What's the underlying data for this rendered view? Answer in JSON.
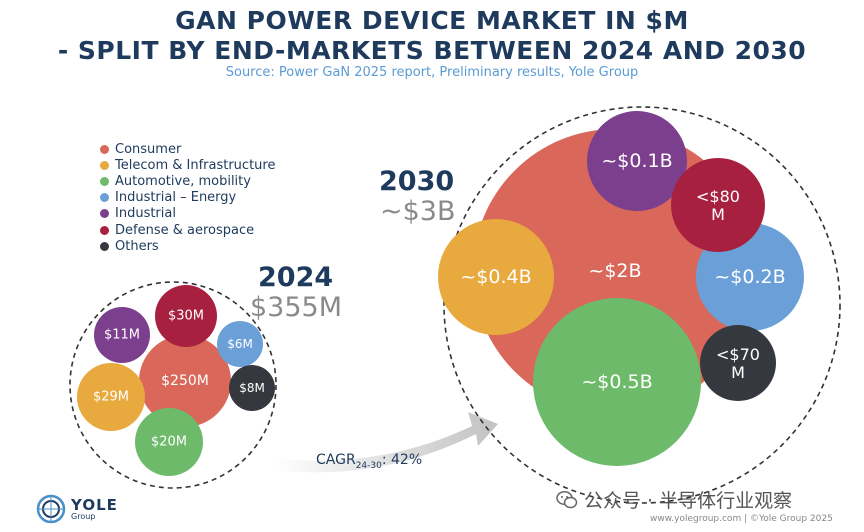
{
  "title_line1": "GAN POWER DEVICE MARKET IN $M",
  "title_line2": "- SPLIT BY END-MARKETS BETWEEN 2024 AND 2030",
  "source": "Source: Power GaN 2025 report, Preliminary results, Yole Group",
  "legend": [
    {
      "label": "Consumer",
      "color": "#d9685a"
    },
    {
      "label": "Telecom & Infrastructure",
      "color": "#e8a93e"
    },
    {
      "label": "Automotive, mobility",
      "color": "#6dbb6a"
    },
    {
      "label": "Industrial – Energy",
      "color": "#6a9fd8"
    },
    {
      "label": "Industrial",
      "color": "#7b3f8e"
    },
    {
      "label": "Defense & aerospace",
      "color": "#a8203f"
    },
    {
      "label": "Others",
      "color": "#35393f"
    }
  ],
  "year_2024": {
    "year": "2024",
    "total": "$355M"
  },
  "year_2030": {
    "year": "2030",
    "total": "~$3B"
  },
  "cagr": {
    "prefix": "CAGR",
    "sub": "24-30",
    "value": ": 42%"
  },
  "logo": {
    "name": "YOLE",
    "sub": "Group"
  },
  "website": "www.yolegroup.com | ©Yole Group 2025",
  "watermark": "公众号 · 半导体行业观察",
  "chart_data": {
    "type": "bubble",
    "title": "GAN POWER DEVICE MARKET IN $M - SPLIT BY END-MARKETS BETWEEN 2024 AND 2030",
    "unit": "$M",
    "series": [
      {
        "name": "2024",
        "total_label": "$355M",
        "values": [
          {
            "segment": "Consumer",
            "label": "$250M",
            "value": 250
          },
          {
            "segment": "Telecom & Infrastructure",
            "label": "$29M",
            "value": 29
          },
          {
            "segment": "Automotive, mobility",
            "label": "$20M",
            "value": 20
          },
          {
            "segment": "Industrial – Energy",
            "label": "$6M",
            "value": 6
          },
          {
            "segment": "Industrial",
            "label": "$11M",
            "value": 11
          },
          {
            "segment": "Defense & aerospace",
            "label": "$30M",
            "value": 30
          },
          {
            "segment": "Others",
            "label": "$8M",
            "value": 8
          }
        ]
      },
      {
        "name": "2030",
        "total_label": "~$3B",
        "values": [
          {
            "segment": "Consumer",
            "label": "~$2B",
            "value": 2000
          },
          {
            "segment": "Telecom & Infrastructure",
            "label": "~$0.4B",
            "value": 400
          },
          {
            "segment": "Automotive, mobility",
            "label": "~$0.5B",
            "value": 500
          },
          {
            "segment": "Industrial – Energy",
            "label": "~$0.2B",
            "value": 200
          },
          {
            "segment": "Industrial",
            "label": "~$0.1B",
            "value": 100
          },
          {
            "segment": "Defense & aerospace",
            "label": "<$80 M",
            "value": 80
          },
          {
            "segment": "Others",
            "label": "<$70 M",
            "value": 70
          }
        ]
      }
    ],
    "cagr_2024_2030": "42%"
  }
}
